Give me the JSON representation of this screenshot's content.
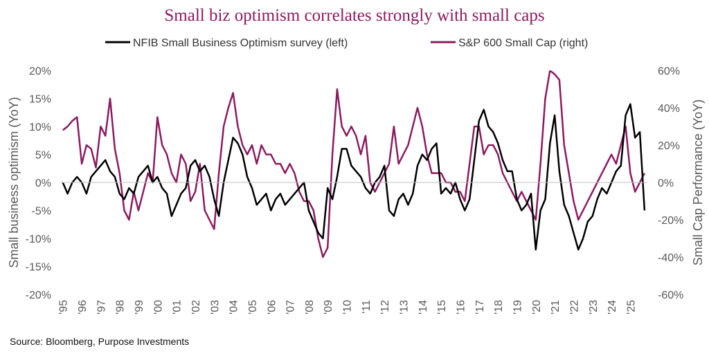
{
  "chart_data": {
    "type": "line",
    "title": "Small biz optimism correlates strongly with small caps",
    "y_label": "Small business optimism (YoY)",
    "y2_label": "Small Cap Performance (YoY)",
    "source": "Source: Bloomberg, Purpose Investments",
    "x": [
      1995,
      1995.25,
      1995.5,
      1995.75,
      1996,
      1996.25,
      1996.5,
      1996.75,
      1997,
      1997.25,
      1997.5,
      1997.75,
      1998,
      1998.25,
      1998.5,
      1998.75,
      1999,
      1999.25,
      1999.5,
      1999.75,
      2000,
      2000.25,
      2000.5,
      2000.75,
      2001,
      2001.25,
      2001.5,
      2001.75,
      2002,
      2002.25,
      2002.5,
      2002.75,
      2003,
      2003.25,
      2003.5,
      2003.75,
      2004,
      2004.25,
      2004.5,
      2004.75,
      2005,
      2005.25,
      2005.5,
      2005.75,
      2006,
      2006.25,
      2006.5,
      2006.75,
      2007,
      2007.25,
      2007.5,
      2007.75,
      2008,
      2008.25,
      2008.5,
      2008.75,
      2009,
      2009.25,
      2009.5,
      2009.75,
      2010,
      2010.25,
      2010.5,
      2010.75,
      2011,
      2011.25,
      2011.5,
      2011.75,
      2012,
      2012.25,
      2012.5,
      2012.75,
      2013,
      2013.25,
      2013.5,
      2013.75,
      2014,
      2014.25,
      2014.5,
      2014.75,
      2015,
      2015.25,
      2015.5,
      2015.75,
      2016,
      2016.25,
      2016.5,
      2016.75,
      2017,
      2017.25,
      2017.5,
      2017.75,
      2018,
      2018.25,
      2018.5,
      2018.75,
      2019,
      2019.25,
      2019.5,
      2019.75,
      2020,
      2020.25,
      2020.5,
      2020.75,
      2021,
      2021.25,
      2021.5,
      2021.75,
      2022,
      2022.25,
      2022.5,
      2022.75,
      2023,
      2023.25,
      2023.5,
      2023.75,
      2024,
      2024.25,
      2024.5,
      2024.75,
      2025,
      2025.25,
      2025.5,
      2025.75
    ],
    "series": [
      {
        "name": "NFIB Small Business Optimism survey (left)",
        "color": "#000000",
        "axis": "y",
        "values": [
          0,
          -2,
          0,
          1,
          0,
          -2,
          1,
          2,
          3,
          4,
          2,
          1,
          -2,
          -3,
          -1,
          -2,
          1,
          2,
          3,
          0,
          1,
          -1,
          -2,
          -6,
          -4,
          -2,
          -1,
          3,
          4,
          2,
          3,
          1,
          -3,
          -6,
          0,
          4,
          8,
          7,
          5,
          1,
          -1,
          -4,
          -3,
          -2,
          -5,
          -3,
          -2,
          -4,
          -3,
          -2,
          -1,
          0,
          -5,
          -7,
          -9,
          -10,
          -1,
          -3,
          1,
          6,
          6,
          3,
          2,
          1,
          -1,
          -2,
          0,
          1,
          3,
          -5,
          -6,
          -3,
          -2,
          -4,
          -2,
          3,
          5,
          4,
          6,
          7,
          -2,
          -1,
          -2,
          0,
          -3,
          -5,
          -3,
          4,
          11,
          13,
          10,
          9,
          7,
          4,
          2,
          2,
          -3,
          -5,
          -4,
          -2,
          -12,
          -5,
          -3,
          7,
          12,
          2,
          -4,
          -6,
          -9,
          -12,
          -10,
          -7,
          -6,
          -3,
          -1,
          -2,
          0,
          2,
          3,
          12,
          14,
          8,
          9,
          -5
        ]
      },
      {
        "name": "S&P 600 Small Cap (right)",
        "color": "#8b1a5f",
        "axis": "y2",
        "values": [
          28,
          30,
          33,
          35,
          10,
          20,
          18,
          8,
          30,
          25,
          45,
          18,
          5,
          -15,
          -20,
          -5,
          -15,
          -5,
          5,
          0,
          35,
          20,
          15,
          5,
          0,
          15,
          10,
          -10,
          -5,
          10,
          -15,
          -20,
          -25,
          5,
          30,
          40,
          48,
          30,
          20,
          15,
          20,
          10,
          20,
          15,
          15,
          10,
          10,
          5,
          10,
          5,
          -5,
          -10,
          -10,
          -15,
          -30,
          -40,
          -35,
          15,
          50,
          30,
          25,
          30,
          25,
          15,
          25,
          0,
          -5,
          0,
          5,
          10,
          30,
          10,
          15,
          20,
          30,
          40,
          30,
          15,
          5,
          5,
          5,
          0,
          0,
          -5,
          -5,
          -10,
          10,
          30,
          30,
          15,
          20,
          20,
          15,
          5,
          0,
          -5,
          -10,
          -5,
          -10,
          -15,
          -20,
          10,
          45,
          60,
          58,
          55,
          20,
          5,
          -10,
          -20,
          -15,
          -10,
          -5,
          0,
          5,
          10,
          15,
          10,
          20,
          30,
          5,
          -5,
          0,
          5
        ]
      }
    ],
    "xlim": [
      1994.9,
      2025.9
    ],
    "xticks": [
      {
        "value": 1995,
        "label": "'95"
      },
      {
        "value": 1996,
        "label": "'96"
      },
      {
        "value": 1997,
        "label": "'97"
      },
      {
        "value": 1998,
        "label": "'98"
      },
      {
        "value": 1999,
        "label": "'99"
      },
      {
        "value": 2000,
        "label": "'00"
      },
      {
        "value": 2001,
        "label": "'01"
      },
      {
        "value": 2002,
        "label": "'02"
      },
      {
        "value": 2003,
        "label": "'03"
      },
      {
        "value": 2004,
        "label": "'04"
      },
      {
        "value": 2005,
        "label": "'05"
      },
      {
        "value": 2006,
        "label": "'06"
      },
      {
        "value": 2007,
        "label": "'07"
      },
      {
        "value": 2008,
        "label": "'08"
      },
      {
        "value": 2009,
        "label": "'09"
      },
      {
        "value": 2010,
        "label": "'10"
      },
      {
        "value": 2011,
        "label": "'11"
      },
      {
        "value": 2012,
        "label": "'12"
      },
      {
        "value": 2013,
        "label": "'13"
      },
      {
        "value": 2014,
        "label": "'14"
      },
      {
        "value": 2015,
        "label": "'15"
      },
      {
        "value": 2016,
        "label": "'16"
      },
      {
        "value": 2017,
        "label": "'17"
      },
      {
        "value": 2018,
        "label": "'18"
      },
      {
        "value": 2019,
        "label": "'19"
      },
      {
        "value": 2020,
        "label": "'20"
      },
      {
        "value": 2021,
        "label": "'21"
      },
      {
        "value": 2022,
        "label": "'22"
      },
      {
        "value": 2023,
        "label": "'23"
      },
      {
        "value": 2024,
        "label": "'24"
      },
      {
        "value": 2025,
        "label": "'25"
      }
    ],
    "ylim": [
      -20,
      20
    ],
    "yticks": [
      {
        "value": -20,
        "label": "-20%"
      },
      {
        "value": -15,
        "label": "-15%"
      },
      {
        "value": -10,
        "label": "-10%"
      },
      {
        "value": -5,
        "label": "-5%"
      },
      {
        "value": 0,
        "label": "0%"
      },
      {
        "value": 5,
        "label": "5%"
      },
      {
        "value": 10,
        "label": "10%"
      },
      {
        "value": 15,
        "label": "15%"
      },
      {
        "value": 20,
        "label": "20%"
      }
    ],
    "y2lim": [
      -60,
      60
    ],
    "y2ticks": [
      {
        "value": -60,
        "label": "-60%"
      },
      {
        "value": -40,
        "label": "-40%"
      },
      {
        "value": -20,
        "label": "-20%"
      },
      {
        "value": 0,
        "label": "0%"
      },
      {
        "value": 20,
        "label": "20%"
      },
      {
        "value": 40,
        "label": "40%"
      },
      {
        "value": 60,
        "label": "60%"
      }
    ],
    "legend": "top"
  }
}
